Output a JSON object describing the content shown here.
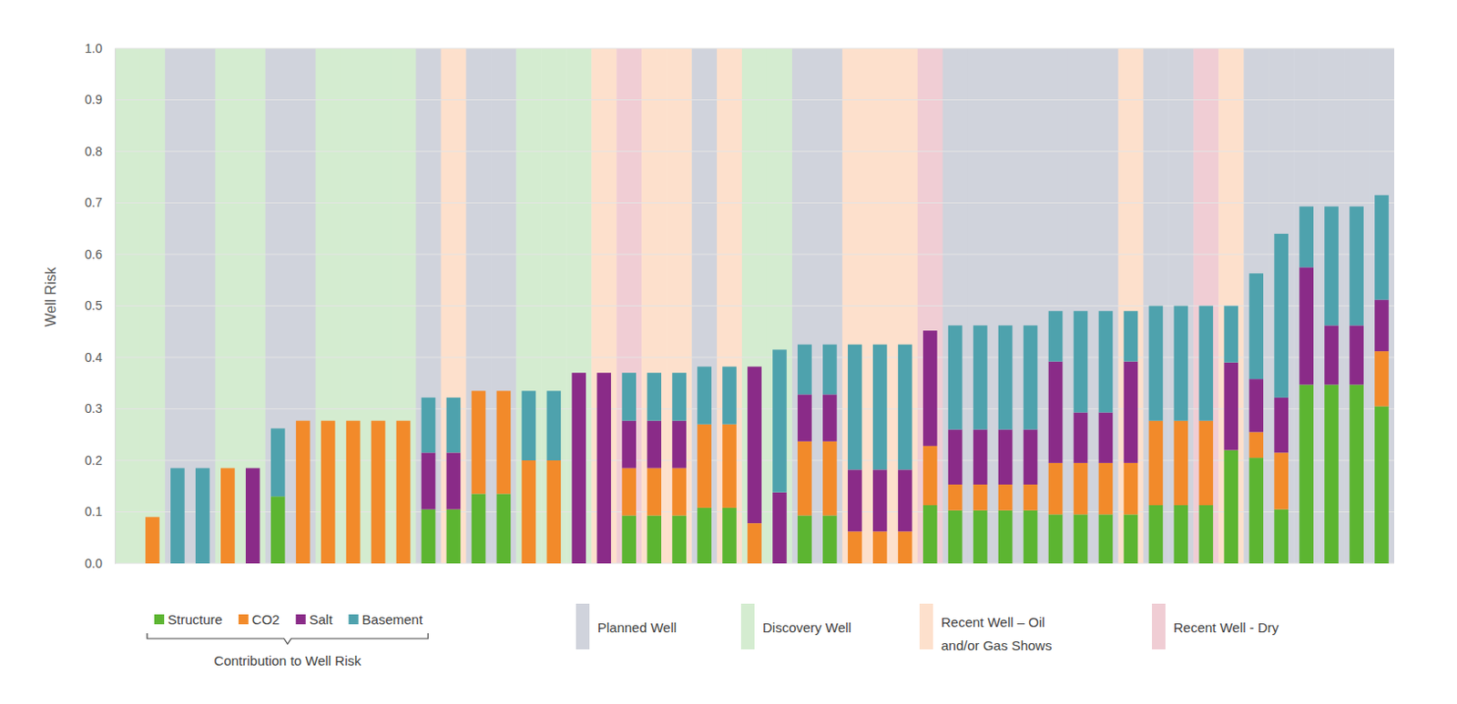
{
  "chart_data": {
    "type": "bar",
    "stacked": true,
    "y_label": "Well Risk",
    "ylim": [
      0,
      1
    ],
    "yticks": [
      {
        "value": 0,
        "label": "0.0"
      },
      {
        "value": 0.1,
        "label": "0.1"
      },
      {
        "value": 0.2,
        "label": "0.2"
      },
      {
        "value": 0.3,
        "label": "0.3"
      },
      {
        "value": 0.4,
        "label": "0.4"
      },
      {
        "value": 0.5,
        "label": "0.5"
      },
      {
        "value": 0.6,
        "label": "0.6"
      },
      {
        "value": 0.7,
        "label": "0.7"
      },
      {
        "value": 0.8,
        "label": "0.8"
      },
      {
        "value": 0.9,
        "label": "0.9"
      },
      {
        "value": 1,
        "label": "1.0"
      }
    ],
    "grid": true,
    "legend": "bottom",
    "tick_labels": "y",
    "categories": [
      null,
      null,
      null,
      null,
      null,
      null,
      null,
      null,
      null,
      null,
      null,
      null,
      null,
      null,
      null,
      null,
      null,
      null,
      null,
      null,
      null,
      null,
      null,
      null,
      null,
      null,
      null,
      null,
      null,
      null,
      null,
      null,
      null,
      null,
      null,
      null,
      null,
      null,
      null,
      null,
      null,
      null,
      null,
      null,
      null,
      null,
      null,
      null,
      null,
      null,
      null
    ],
    "series": [
      {
        "name": "Structure",
        "color": "#5cb531",
        "values": [
          0,
          0,
          0,
          0,
          0,
          0,
          0.13,
          0,
          0,
          0,
          0,
          0,
          0.105,
          0.105,
          0.135,
          0.135,
          0,
          0,
          0,
          0,
          0.093,
          0.093,
          0.093,
          0.108,
          0.108,
          0,
          0,
          0.093,
          0.093,
          0,
          0,
          0,
          0.113,
          0.103,
          0.103,
          0.103,
          0.103,
          0.095,
          0.095,
          0.095,
          0.095,
          0.113,
          0.113,
          0.113,
          0.22,
          0.205,
          0.105,
          0.347,
          0.347,
          0.347,
          0.305
        ]
      },
      {
        "name": "CO2",
        "color": "#f28a2a",
        "values": [
          0,
          0.09,
          0,
          0,
          0.185,
          0,
          0,
          0.277,
          0.277,
          0.277,
          0.277,
          0.277,
          0,
          0,
          0.2,
          0.2,
          0.2,
          0.2,
          0,
          0,
          0.092,
          0.092,
          0.092,
          0.162,
          0.162,
          0.078,
          0,
          0.144,
          0.144,
          0.062,
          0.062,
          0.062,
          0.115,
          0.05,
          0.05,
          0.05,
          0.05,
          0.1,
          0.1,
          0.1,
          0.1,
          0.164,
          0.164,
          0.164,
          0,
          0.05,
          0.11,
          0,
          0,
          0,
          0.107
        ]
      },
      {
        "name": "Salt",
        "color": "#8a2b88",
        "values": [
          0,
          0,
          0,
          0,
          0,
          0.185,
          0,
          0,
          0,
          0,
          0,
          0,
          0.11,
          0.11,
          0,
          0,
          0,
          0,
          0.37,
          0.37,
          0.092,
          0.092,
          0.092,
          0,
          0,
          0.304,
          0.138,
          0.091,
          0.091,
          0.12,
          0.12,
          0.12,
          0.224,
          0.107,
          0.107,
          0.107,
          0.107,
          0.197,
          0.098,
          0.098,
          0.197,
          0,
          0,
          0,
          0.17,
          0.103,
          0.107,
          0.228,
          0.115,
          0.115,
          0.1
        ]
      },
      {
        "name": "Basement",
        "color": "#4ea2ad",
        "values": [
          0,
          0,
          0.185,
          0.185,
          0,
          0,
          0.132,
          0,
          0,
          0,
          0,
          0,
          0.107,
          0.107,
          0,
          0,
          0.135,
          0.135,
          0,
          0,
          0.093,
          0.093,
          0.093,
          0.112,
          0.112,
          0,
          0.277,
          0.097,
          0.097,
          0.243,
          0.243,
          0.243,
          0,
          0.202,
          0.202,
          0.202,
          0.202,
          0.098,
          0.197,
          0.197,
          0.098,
          0.223,
          0.223,
          0.223,
          0.11,
          0.205,
          0.318,
          0.118,
          0.231,
          0.231,
          0.203
        ]
      }
    ],
    "legend_group_label": "Contribution to Well Risk",
    "well_types": [
      {
        "name": "Planned Well",
        "color": "#d0d3dc"
      },
      {
        "name": "Discovery Well",
        "color": "#d4ecd0"
      },
      {
        "name": "Recent Well – Oil and/or Gas Shows",
        "color": "#fde0cc"
      },
      {
        "name": "Recent Well - Dry",
        "color": "#f0cdd4"
      }
    ],
    "well_type": [
      "Discovery Well",
      "Discovery Well",
      "Planned Well",
      "Planned Well",
      "Discovery Well",
      "Discovery Well",
      "Planned Well",
      "Planned Well",
      "Discovery Well",
      "Discovery Well",
      "Discovery Well",
      "Discovery Well",
      "Planned Well",
      "Recent Well – Oil and/or Gas Shows",
      "Planned Well",
      "Planned Well",
      "Discovery Well",
      "Discovery Well",
      "Discovery Well",
      "Recent Well – Oil and/or Gas Shows",
      "Recent Well - Dry",
      "Recent Well – Oil and/or Gas Shows",
      "Recent Well – Oil and/or Gas Shows",
      "Planned Well",
      "Recent Well – Oil and/or Gas Shows",
      "Discovery Well",
      "Discovery Well",
      "Planned Well",
      "Planned Well",
      "Recent Well – Oil and/or Gas Shows",
      "Recent Well – Oil and/or Gas Shows",
      "Recent Well – Oil and/or Gas Shows",
      "Recent Well - Dry",
      "Planned Well",
      "Planned Well",
      "Planned Well",
      "Planned Well",
      "Planned Well",
      "Planned Well",
      "Planned Well",
      "Recent Well – Oil and/or Gas Shows",
      "Planned Well",
      "Planned Well",
      "Recent Well - Dry",
      "Recent Well – Oil and/or Gas Shows",
      "Planned Well",
      "Planned Well",
      "Planned Well",
      "Planned Well",
      "Planned Well",
      "Planned Well"
    ]
  }
}
